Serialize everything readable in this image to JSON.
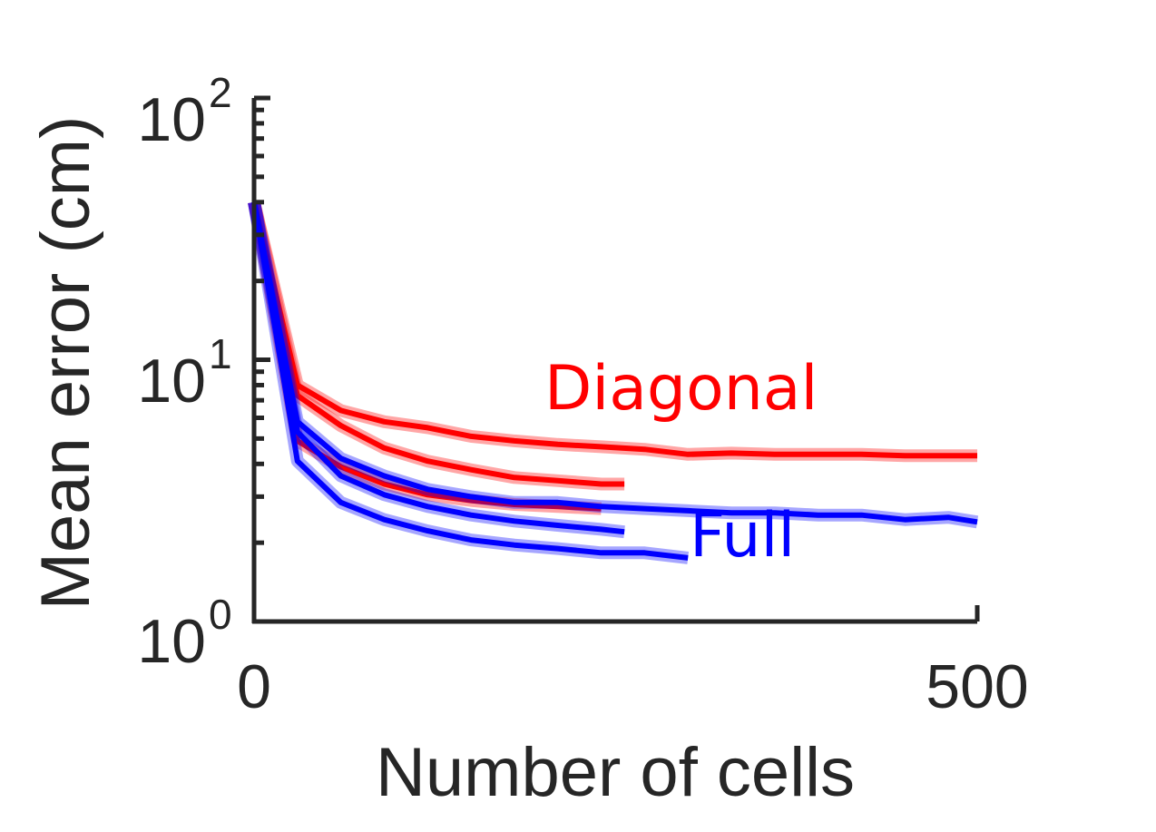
{
  "chart_data": {
    "type": "line",
    "xlabel": "Number of cells",
    "ylabel": "Mean error (cm)",
    "xlim": [
      0,
      500
    ],
    "ylim": [
      1,
      100
    ],
    "yscale": "log",
    "grid": false,
    "x_ticks": [
      "0",
      "500"
    ],
    "y_ticks": [
      {
        "value": 1,
        "base": "10",
        "exp": "0"
      },
      {
        "value": 10,
        "base": "10",
        "exp": "1"
      },
      {
        "value": 100,
        "base": "10",
        "exp": "2"
      }
    ],
    "colors": {
      "Diagonal": "#ff0000",
      "Full": "#0000ff",
      "axis": "#262626"
    },
    "series_labels": [
      {
        "text": "Diagonal",
        "color": "#ff0000"
      },
      {
        "text": "Full",
        "color": "#0000ff"
      }
    ],
    "series": [
      {
        "group": "Diagonal",
        "x": [
          0,
          30,
          60,
          90,
          120,
          150,
          180,
          210,
          240,
          270,
          300,
          330,
          360,
          390,
          420,
          450,
          480,
          500
        ],
        "values": [
          40,
          8.0,
          6.4,
          5.8,
          5.5,
          5.1,
          4.9,
          4.75,
          4.65,
          4.55,
          4.35,
          4.4,
          4.35,
          4.35,
          4.35,
          4.3,
          4.3,
          4.3
        ]
      },
      {
        "group": "Diagonal",
        "x": [
          0,
          30,
          60,
          90,
          120,
          150,
          180,
          210,
          240,
          256
        ],
        "values": [
          40,
          7.3,
          5.6,
          4.6,
          4.1,
          3.8,
          3.55,
          3.45,
          3.35,
          3.35
        ]
      },
      {
        "group": "Diagonal",
        "x": [
          0,
          30,
          60,
          90,
          120,
          150,
          180,
          210,
          240
        ],
        "values": [
          40,
          4.9,
          3.9,
          3.35,
          3.05,
          2.9,
          2.8,
          2.75,
          2.7
        ]
      },
      {
        "group": "Full",
        "x": [
          0,
          30,
          60,
          90,
          120,
          150,
          180,
          210,
          240,
          270,
          300,
          330,
          360,
          390,
          420,
          450,
          480,
          500
        ],
        "values": [
          40,
          5.8,
          4.2,
          3.6,
          3.2,
          3.0,
          2.85,
          2.85,
          2.75,
          2.7,
          2.65,
          2.6,
          2.6,
          2.55,
          2.55,
          2.45,
          2.5,
          2.4
        ]
      },
      {
        "group": "Full",
        "x": [
          0,
          30,
          60,
          90,
          120,
          150,
          180,
          210,
          240,
          256
        ],
        "values": [
          40,
          5.3,
          3.6,
          3.05,
          2.75,
          2.55,
          2.42,
          2.33,
          2.25,
          2.2
        ]
      },
      {
        "group": "Full",
        "x": [
          0,
          30,
          60,
          90,
          120,
          150,
          180,
          210,
          240,
          270,
          300
        ],
        "values": [
          40,
          4.1,
          2.85,
          2.45,
          2.22,
          2.05,
          1.96,
          1.9,
          1.83,
          1.83,
          1.75
        ]
      }
    ]
  }
}
